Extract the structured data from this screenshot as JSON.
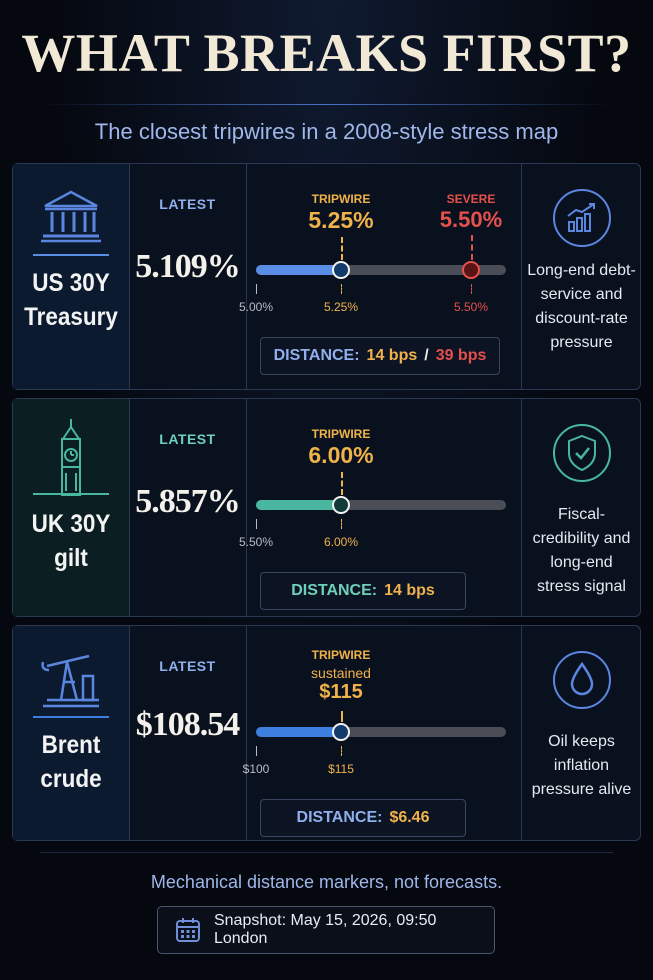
{
  "header": {
    "title": "WHAT BREAKS FIRST?",
    "subtitle": "The closest tripwires in a 2008-style stress map"
  },
  "rows": [
    {
      "name": "US 30Y Treasury",
      "latest_label": "LATEST",
      "latest": "5.109%",
      "tripwire_label": "TRIPWIRE",
      "tripwire": "5.25%",
      "severe_label": "SEVERE",
      "severe": "5.50%",
      "scale": [
        "5.00%",
        "5.25%",
        "5.50%"
      ],
      "distance_label": "DISTANCE:",
      "distance": [
        "14 bps",
        "39 bps"
      ],
      "distance_sep": "/",
      "note": "Long-end debt-service and discount-rate pressure"
    },
    {
      "name": "UK 30Y gilt",
      "latest_label": "LATEST",
      "latest": "5.857%",
      "tripwire_label": "TRIPWIRE",
      "tripwire": "6.00%",
      "scale": [
        "5.50%",
        "6.00%"
      ],
      "distance_label": "DISTANCE:",
      "distance": [
        "14 bps"
      ],
      "note": "Fiscal-credibility and long-end stress signal"
    },
    {
      "name": "Brent crude",
      "latest_label": "LATEST",
      "latest": "$108.54",
      "tripwire_label": "TRIPWIRE",
      "tripwire_note": "sustained",
      "tripwire": "$115",
      "scale": [
        "$100",
        "$115"
      ],
      "distance_label": "DISTANCE:",
      "distance": [
        "$6.46"
      ],
      "note": "Oil keeps inflation pressure alive"
    }
  ],
  "footer": {
    "note": "Mechanical distance markers, not forecasts.",
    "snapshot": "Snapshot: May 15, 2026, 09:50 London"
  }
}
